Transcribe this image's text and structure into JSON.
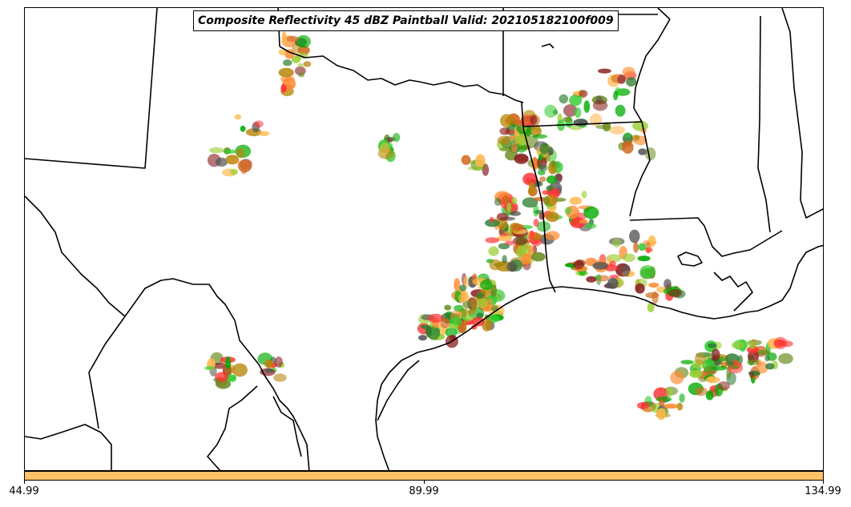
{
  "title": "Composite Reflectivity 45 dBZ Paintball Valid: 202105182100f009",
  "colorbar": {
    "color": "#ffc266",
    "tick_labels": [
      "44.99",
      "89.99",
      "134.99"
    ]
  },
  "member_colors": [
    "#ff3333",
    "#ff8c33",
    "#ffb84d",
    "#33cc33",
    "#2e7d32",
    "#8b2323",
    "#555555",
    "#9acd32",
    "#b8860b",
    "#00aa00",
    "#d2691e",
    "#6b8e23"
  ],
  "map": {
    "region": "Southern Plains / Texas / Louisiana / Gulf of Mexico",
    "boundaries": [
      "state borders",
      "coastline",
      "international border"
    ]
  }
}
